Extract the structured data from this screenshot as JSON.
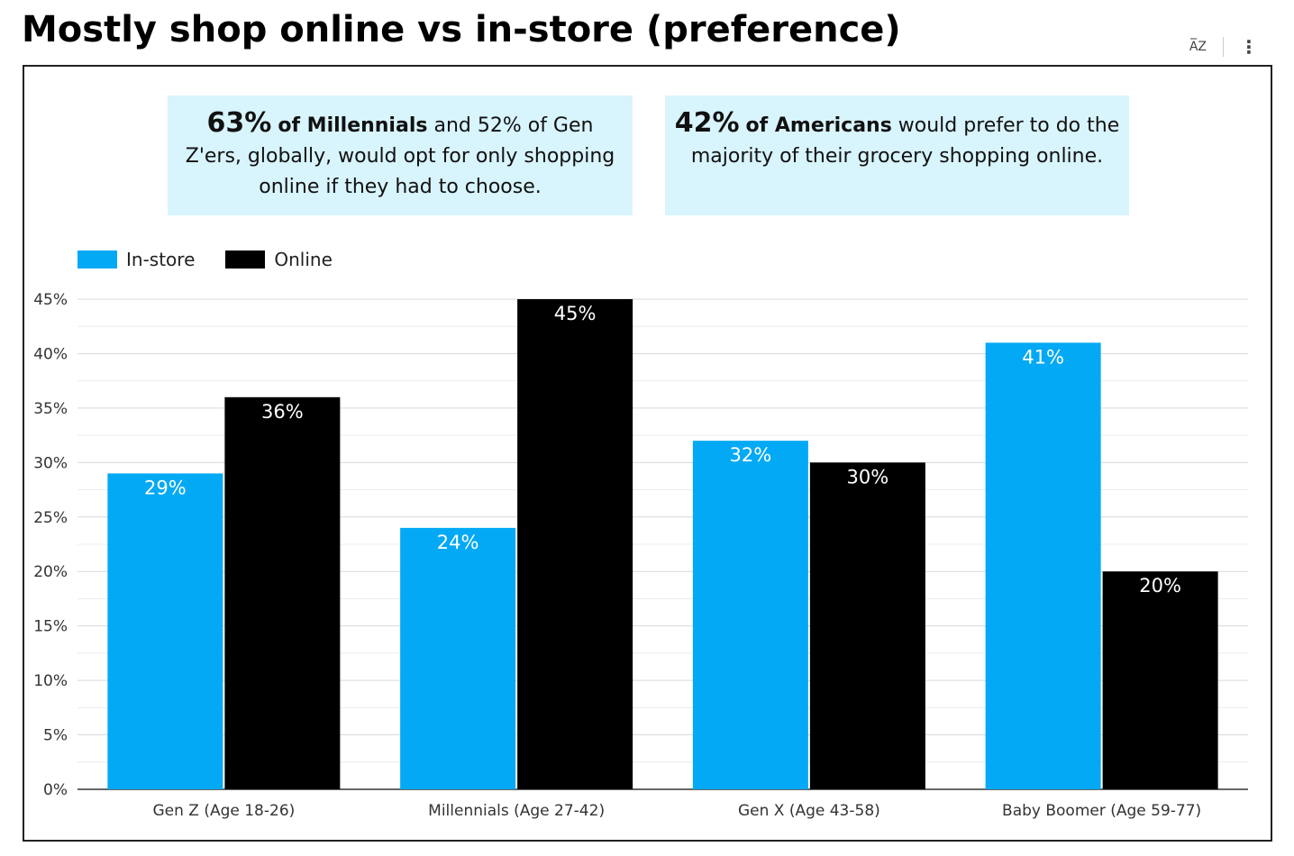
{
  "title": "Mostly shop online vs in-store (preference)",
  "toolbar": {
    "sort_icon": "A→Z sort",
    "sort_label": "A̅Z",
    "menu_label": "⋮"
  },
  "callouts": [
    {
      "stat": "63%",
      "stat_label": "of Millennials",
      "rest": " and 52% of Gen Z'ers, globally, would opt for only shopping online if they had to choose."
    },
    {
      "stat": "42%",
      "stat_label": "of Americans",
      "rest": " would prefer to do the majority of their grocery shopping online."
    }
  ],
  "colors": {
    "instore": "#03a9f4",
    "online": "#000000",
    "callout_bg": "#d8f4fc",
    "grid": "#dddddd"
  },
  "chart_data": {
    "type": "bar",
    "title": "Mostly shop online vs in-store (preference)",
    "categories": [
      "Gen Z (Age 18-26)",
      "Millennials (Age 27-42)",
      "Gen X (Age 43-58)",
      "Baby Boomer (Age 59-77)"
    ],
    "series": [
      {
        "name": "In-store",
        "values": [
          29,
          24,
          32,
          41
        ],
        "labels": [
          "29%",
          "24%",
          "32%",
          "41%"
        ]
      },
      {
        "name": "Online",
        "values": [
          36,
          45,
          30,
          20
        ],
        "labels": [
          "36%",
          "45%",
          "30%",
          "20%"
        ]
      }
    ],
    "ylim": [
      0,
      45
    ],
    "yticks": [
      "0%",
      "5%",
      "10%",
      "15%",
      "20%",
      "25%",
      "30%",
      "35%",
      "40%",
      "45%"
    ],
    "xlabel": "",
    "ylabel": "",
    "grid": true,
    "legend": "top-left"
  }
}
